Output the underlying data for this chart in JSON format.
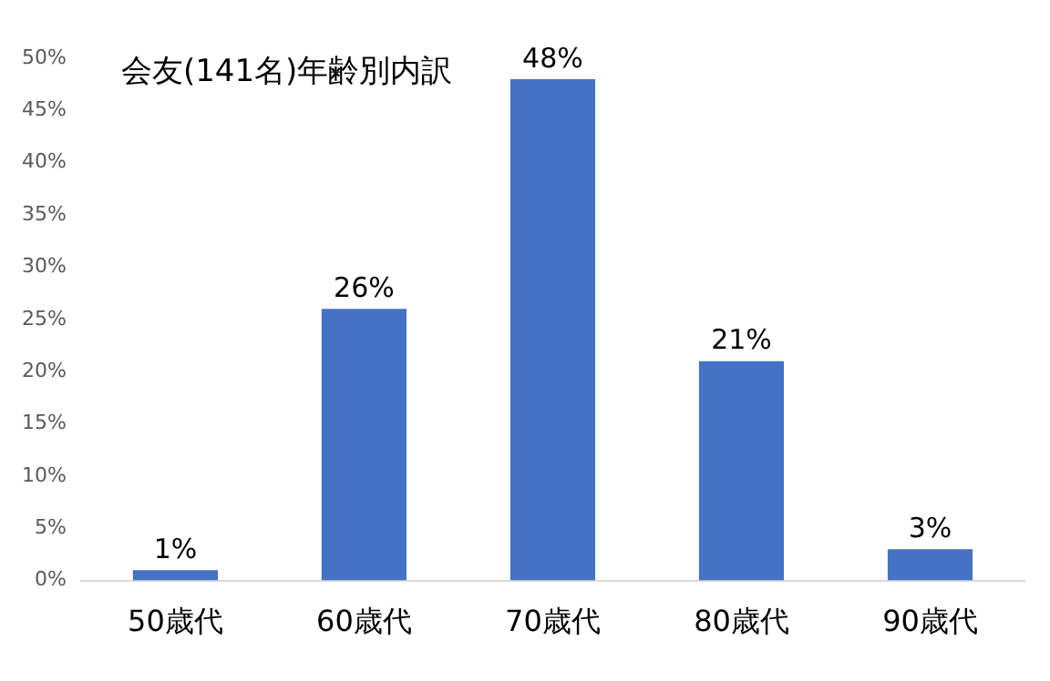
{
  "chart_data": {
    "type": "bar",
    "title": "会友(141名)年齢別内訳",
    "categories": [
      "50歳代",
      "60歳代",
      "70歳代",
      "80歳代",
      "90歳代"
    ],
    "values": [
      1,
      26,
      48,
      21,
      3
    ],
    "color": "#4472c4",
    "ylim": [
      0,
      50
    ],
    "yticks": [
      {
        "value": 0,
        "label": "0%"
      },
      {
        "value": 5,
        "label": "5%"
      },
      {
        "value": 10,
        "label": "10%"
      },
      {
        "value": 15,
        "label": "15%"
      },
      {
        "value": 20,
        "label": "20%"
      },
      {
        "value": 25,
        "label": "25%"
      },
      {
        "value": 30,
        "label": "30%"
      },
      {
        "value": 35,
        "label": "35%"
      },
      {
        "value": 40,
        "label": "40%"
      },
      {
        "value": 45,
        "label": "45%"
      },
      {
        "value": 50,
        "label": "50%"
      }
    ],
    "value_labels": [
      "1%",
      "26%",
      "48%",
      "21%",
      "3%"
    ],
    "grid": false,
    "legend": false
  }
}
